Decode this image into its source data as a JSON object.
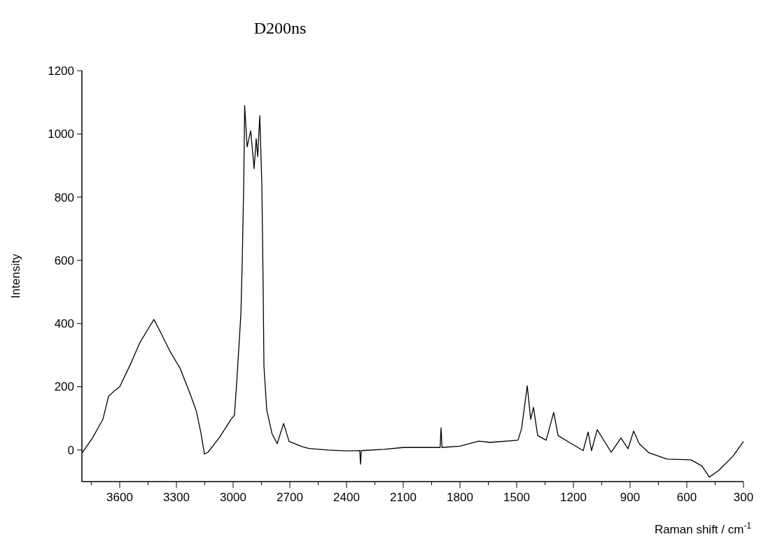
{
  "chart_data": {
    "type": "line",
    "title": "D200ns",
    "xlabel": "Raman shift / cm$^{-1}$",
    "ylabel": "Intensity",
    "xlim": [
      3800,
      300
    ],
    "ylim": [
      -100,
      1200
    ],
    "xticks": [
      {
        "value": 3750,
        "label": null
      },
      3600,
      {
        "value": 3450,
        "label": null
      },
      3300,
      {
        "value": 3150,
        "label": null
      },
      3000,
      {
        "value": 2850,
        "label": null
      },
      2700,
      {
        "value": 2550,
        "label": null
      },
      2400,
      {
        "value": 2250,
        "label": null
      },
      2100,
      {
        "value": 1950,
        "label": null
      },
      1800,
      {
        "value": 1650,
        "label": null
      },
      1500,
      {
        "value": 1350,
        "label": null
      },
      1200,
      {
        "value": 1050,
        "label": null
      },
      900,
      {
        "value": 750,
        "label": null
      },
      600,
      {
        "value": 450,
        "label": null
      },
      300
    ],
    "yticks": [
      0,
      200,
      400,
      600,
      800,
      1000,
      1200
    ],
    "grid": false,
    "line_style": "solid",
    "series": [
      {
        "color": "#000000",
        "x": [
          3800,
          3744,
          3689,
          3659,
          3630,
          3600,
          3541,
          3493,
          3448,
          3419,
          3381,
          3333,
          3281,
          3233,
          3196,
          3170,
          3152,
          3133,
          3074,
          3011,
          2993,
          2980,
          2959,
          2952,
          2944,
          2939,
          2926,
          2907,
          2889,
          2878,
          2870,
          2859,
          2848,
          2841,
          2837,
          2822,
          2794,
          2767,
          2733,
          2704,
          2637,
          2600,
          2500,
          2400,
          2330,
          2326,
          2322,
          2200,
          2100,
          2000,
          1905,
          1900,
          1895,
          1800,
          1700,
          1641,
          1493,
          1474,
          1444,
          1426,
          1411,
          1389,
          1344,
          1304,
          1281,
          1222,
          1148,
          1122,
          1104,
          1074,
          1000,
          948,
          911,
          881,
          852,
          800,
          704,
          578,
          519,
          481,
          430,
          356,
          300
        ],
        "values": [
          -10,
          38,
          97,
          170,
          186,
          200,
          274,
          340,
          385,
          413,
          369,
          311,
          259,
          186,
          126,
          53,
          -13,
          -7,
          38,
          97,
          110,
          223,
          429,
          592,
          838,
          1090,
          959,
          1010,
          890,
          985,
          928,
          1058,
          838,
          510,
          265,
          126,
          51,
          20,
          84,
          27,
          11,
          5,
          0,
          -3,
          -2,
          -45,
          -2,
          2,
          8,
          8,
          8,
          70,
          8,
          12,
          28,
          24,
          31,
          68,
          203,
          97,
          135,
          46,
          31,
          119,
          46,
          24,
          -2,
          57,
          -2,
          64,
          -7,
          38,
          4,
          60,
          20,
          -9,
          -29,
          -31,
          -51,
          -86,
          -64,
          -20,
          27
        ]
      }
    ]
  }
}
